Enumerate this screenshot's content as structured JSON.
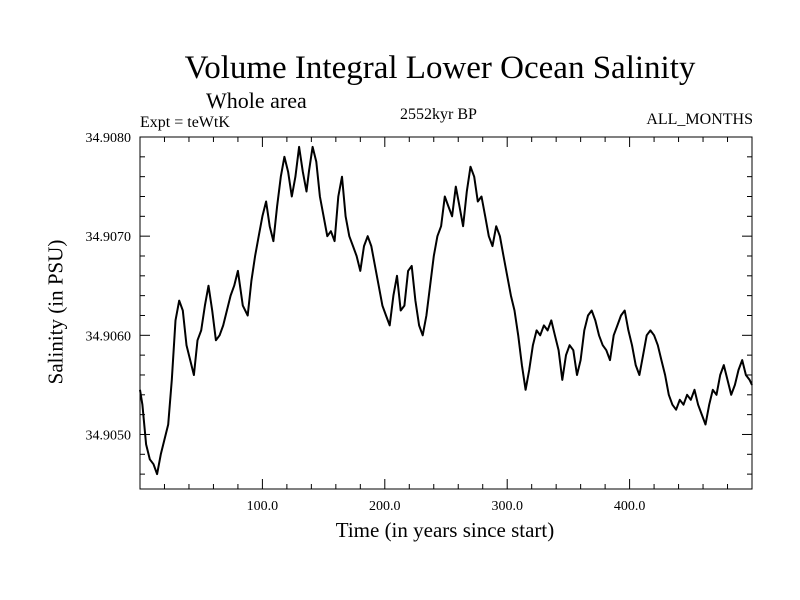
{
  "chart_data": {
    "type": "line",
    "title": "Volume Integral Lower Ocean Salinity",
    "subtitle": "Whole area",
    "experiment": "Expt = teWtK",
    "period": "2552kyr BP",
    "months": "ALL_MONTHS",
    "xlabel": "Time (in years since start)",
    "ylabel": "Salinity (in PSU)",
    "xlim": [
      0,
      500
    ],
    "ylim": [
      34.90445,
      34.908
    ],
    "grid": false,
    "xticks": [
      {
        "value": 100,
        "label": "100.0"
      },
      {
        "value": 200,
        "label": "200.0"
      },
      {
        "value": 300,
        "label": "300.0"
      },
      {
        "value": 400,
        "label": "400.0"
      }
    ],
    "yticks": [
      {
        "value": 34.905,
        "label": "34.9050"
      },
      {
        "value": 34.906,
        "label": "34.9060"
      },
      {
        "value": 34.907,
        "label": "34.9070"
      },
      {
        "value": 34.908,
        "label": "34.9080"
      }
    ],
    "series": [
      {
        "name": "salinity",
        "x": [
          0,
          2,
          5,
          8,
          11,
          14,
          17,
          20,
          23,
          26,
          29,
          32,
          35,
          38,
          41,
          44,
          47,
          50,
          53,
          56,
          59,
          62,
          65,
          68,
          71,
          74,
          77,
          80,
          84,
          88,
          91,
          94,
          97,
          100,
          103,
          106,
          109,
          112,
          115,
          118,
          121,
          124,
          127,
          130,
          133,
          136,
          138,
          141,
          144,
          147,
          150,
          153,
          156,
          159,
          162,
          165,
          168,
          171,
          174,
          177,
          180,
          183,
          186,
          189,
          192,
          195,
          198,
          201,
          204,
          207,
          210,
          213,
          216,
          219,
          222,
          225,
          228,
          231,
          234,
          237,
          240,
          243,
          246,
          249,
          252,
          255,
          258,
          261,
          264,
          267,
          270,
          273,
          276,
          279,
          282,
          285,
          288,
          291,
          294,
          297,
          300,
          303,
          306,
          309,
          312,
          315,
          318,
          321,
          324,
          327,
          330,
          333,
          336,
          339,
          342,
          345,
          348,
          351,
          354,
          357,
          360,
          363,
          366,
          369,
          372,
          375,
          378,
          381,
          384,
          387,
          390,
          393,
          396,
          399,
          402,
          405,
          408,
          411,
          414,
          417,
          420,
          423,
          426,
          429,
          432,
          435,
          438,
          441,
          444,
          447,
          450,
          453,
          456,
          459,
          462,
          465,
          468,
          471,
          474,
          477,
          480,
          483,
          486,
          489,
          492,
          495,
          498,
          500
        ],
        "y": [
          34.90545,
          34.9053,
          34.9049,
          34.90475,
          34.9047,
          34.9046,
          34.9048,
          34.90495,
          34.9051,
          34.90555,
          34.90615,
          34.90635,
          34.90625,
          34.9059,
          34.90575,
          34.9056,
          34.90595,
          34.90605,
          34.9063,
          34.9065,
          34.90625,
          34.90595,
          34.906,
          34.9061,
          34.90625,
          34.9064,
          34.9065,
          34.90665,
          34.9063,
          34.9062,
          34.90655,
          34.9068,
          34.907,
          34.9072,
          34.90735,
          34.9071,
          34.90695,
          34.9073,
          34.9076,
          34.9078,
          34.90765,
          34.9074,
          34.9076,
          34.9079,
          34.90765,
          34.90745,
          34.90765,
          34.9079,
          34.90775,
          34.9074,
          34.9072,
          34.907,
          34.90705,
          34.90695,
          34.9074,
          34.9076,
          34.9072,
          34.907,
          34.9069,
          34.9068,
          34.90665,
          34.9069,
          34.907,
          34.9069,
          34.9067,
          34.9065,
          34.9063,
          34.9062,
          34.9061,
          34.9064,
          34.9066,
          34.90625,
          34.9063,
          34.90665,
          34.9067,
          34.90635,
          34.9061,
          34.906,
          34.9062,
          34.9065,
          34.9068,
          34.907,
          34.9071,
          34.9074,
          34.9073,
          34.9072,
          34.9075,
          34.9073,
          34.9071,
          34.90745,
          34.9077,
          34.9076,
          34.90735,
          34.9074,
          34.9072,
          34.907,
          34.9069,
          34.9071,
          34.907,
          34.9068,
          34.9066,
          34.9064,
          34.90625,
          34.906,
          34.9057,
          34.90545,
          34.90565,
          34.9059,
          34.90605,
          34.906,
          34.9061,
          34.90605,
          34.90615,
          34.906,
          34.90585,
          34.90555,
          34.9058,
          34.9059,
          34.90585,
          34.9056,
          34.90575,
          34.90605,
          34.9062,
          34.90625,
          34.90615,
          34.906,
          34.9059,
          34.90585,
          34.90575,
          34.906,
          34.9061,
          34.9062,
          34.90625,
          34.90605,
          34.9059,
          34.9057,
          34.9056,
          34.9058,
          34.906,
          34.90605,
          34.906,
          34.9059,
          34.90575,
          34.9056,
          34.9054,
          34.9053,
          34.90525,
          34.90535,
          34.9053,
          34.9054,
          34.90535,
          34.90545,
          34.9053,
          34.9052,
          34.9051,
          34.9053,
          34.90545,
          34.9054,
          34.9056,
          34.9057,
          34.90555,
          34.9054,
          34.9055,
          34.90565,
          34.90575,
          34.9056,
          34.90555,
          34.9055
        ]
      }
    ]
  }
}
